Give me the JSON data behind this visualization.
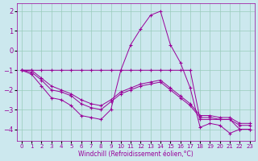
{
  "xlabel": "Windchill (Refroidissement éolien,°C)",
  "bg_color": "#cce8ee",
  "line_color": "#990099",
  "grid_color": "#99ccbb",
  "xlim": [
    -0.5,
    23.5
  ],
  "ylim": [
    -4.6,
    2.4
  ],
  "yticks": [
    -4,
    -3,
    -2,
    -1,
    0,
    1,
    2
  ],
  "xticks": [
    0,
    1,
    2,
    3,
    4,
    5,
    6,
    7,
    8,
    9,
    10,
    11,
    12,
    13,
    14,
    15,
    16,
    17,
    18,
    19,
    20,
    21,
    22,
    23
  ],
  "lines": [
    {
      "x": [
        0,
        1,
        2,
        3,
        4,
        5,
        6,
        7,
        8,
        9,
        10,
        11,
        12,
        13,
        14,
        15,
        16,
        17,
        18,
        19,
        20,
        21,
        22,
        23
      ],
      "y": [
        -1.0,
        -1.0,
        -1.0,
        -1.0,
        -1.0,
        -1.0,
        -1.0,
        -1.0,
        -1.0,
        -1.0,
        -1.0,
        -1.0,
        -1.0,
        -1.0,
        -1.0,
        -1.0,
        -1.0,
        -1.0,
        -3.5,
        -3.5,
        -3.5,
        -3.5,
        -4.0,
        -4.0
      ]
    },
    {
      "x": [
        0,
        1,
        2,
        3,
        4,
        5,
        6,
        7,
        8,
        9,
        10,
        11,
        12,
        13,
        14,
        15,
        16,
        17,
        18,
        19,
        20,
        21,
        22,
        23
      ],
      "y": [
        -1.0,
        -1.2,
        -1.8,
        -2.4,
        -2.5,
        -2.8,
        -3.3,
        -3.4,
        -3.5,
        -3.0,
        -1.0,
        0.3,
        1.1,
        1.8,
        2.0,
        0.3,
        -0.6,
        -1.9,
        -3.9,
        -3.7,
        -3.8,
        -4.2,
        -4.0,
        -4.0
      ]
    },
    {
      "x": [
        0,
        1,
        2,
        3,
        4,
        5,
        6,
        7,
        8,
        9,
        10,
        11,
        12,
        13,
        14,
        15,
        16,
        17,
        18,
        19,
        20,
        21,
        22,
        23
      ],
      "y": [
        -1.0,
        -1.1,
        -1.5,
        -2.0,
        -2.1,
        -2.3,
        -2.7,
        -2.9,
        -3.0,
        -2.6,
        -2.2,
        -2.0,
        -1.8,
        -1.7,
        -1.6,
        -2.0,
        -2.4,
        -2.8,
        -3.4,
        -3.4,
        -3.5,
        -3.5,
        -3.8,
        -3.8
      ]
    },
    {
      "x": [
        0,
        1,
        2,
        3,
        4,
        5,
        6,
        7,
        8,
        9,
        10,
        11,
        12,
        13,
        14,
        15,
        16,
        17,
        18,
        19,
        20,
        21,
        22,
        23
      ],
      "y": [
        -1.0,
        -1.0,
        -1.4,
        -1.8,
        -2.0,
        -2.2,
        -2.5,
        -2.7,
        -2.8,
        -2.5,
        -2.1,
        -1.9,
        -1.7,
        -1.6,
        -1.5,
        -1.9,
        -2.3,
        -2.7,
        -3.3,
        -3.3,
        -3.4,
        -3.4,
        -3.7,
        -3.7
      ]
    }
  ]
}
